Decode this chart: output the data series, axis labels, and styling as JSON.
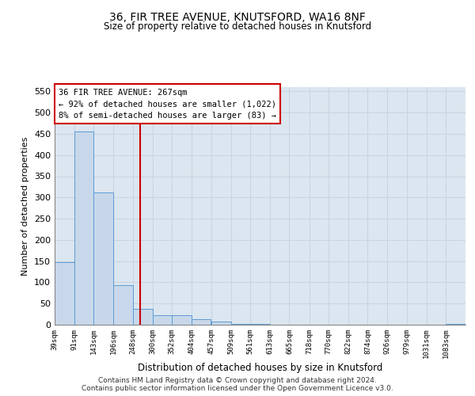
{
  "title1": "36, FIR TREE AVENUE, KNUTSFORD, WA16 8NF",
  "title2": "Size of property relative to detached houses in Knutsford",
  "xlabel": "Distribution of detached houses by size in Knutsford",
  "ylabel": "Number of detached properties",
  "bin_labels": [
    "39sqm",
    "91sqm",
    "143sqm",
    "196sqm",
    "248sqm",
    "300sqm",
    "352sqm",
    "404sqm",
    "457sqm",
    "509sqm",
    "561sqm",
    "613sqm",
    "665sqm",
    "718sqm",
    "770sqm",
    "822sqm",
    "874sqm",
    "926sqm",
    "979sqm",
    "1031sqm",
    "1083sqm"
  ],
  "bar_heights": [
    148,
    455,
    311,
    93,
    38,
    22,
    22,
    13,
    7,
    2,
    1,
    0,
    0,
    0,
    0,
    0,
    0,
    0,
    0,
    0,
    2
  ],
  "bar_color": "#c8d8ea",
  "bar_edge_color": "#5b9bd5",
  "grid_color": "#c8d4e0",
  "bg_color": "#dce6f0",
  "vline_x": 267,
  "vline_color": "#cc0000",
  "annotation_title": "36 FIR TREE AVENUE: 267sqm",
  "annotation_line1": "← 92% of detached houses are smaller (1,022)",
  "annotation_line2": "8% of semi-detached houses are larger (83) →",
  "annotation_box_color": "#ffffff",
  "annotation_border_color": "#cc0000",
  "ylim": [
    0,
    560
  ],
  "yticks": [
    0,
    50,
    100,
    150,
    200,
    250,
    300,
    350,
    400,
    450,
    500,
    550
  ],
  "footer1": "Contains HM Land Registry data © Crown copyright and database right 2024.",
  "footer2": "Contains public sector information licensed under the Open Government Licence v3.0.",
  "bin_width": 52
}
